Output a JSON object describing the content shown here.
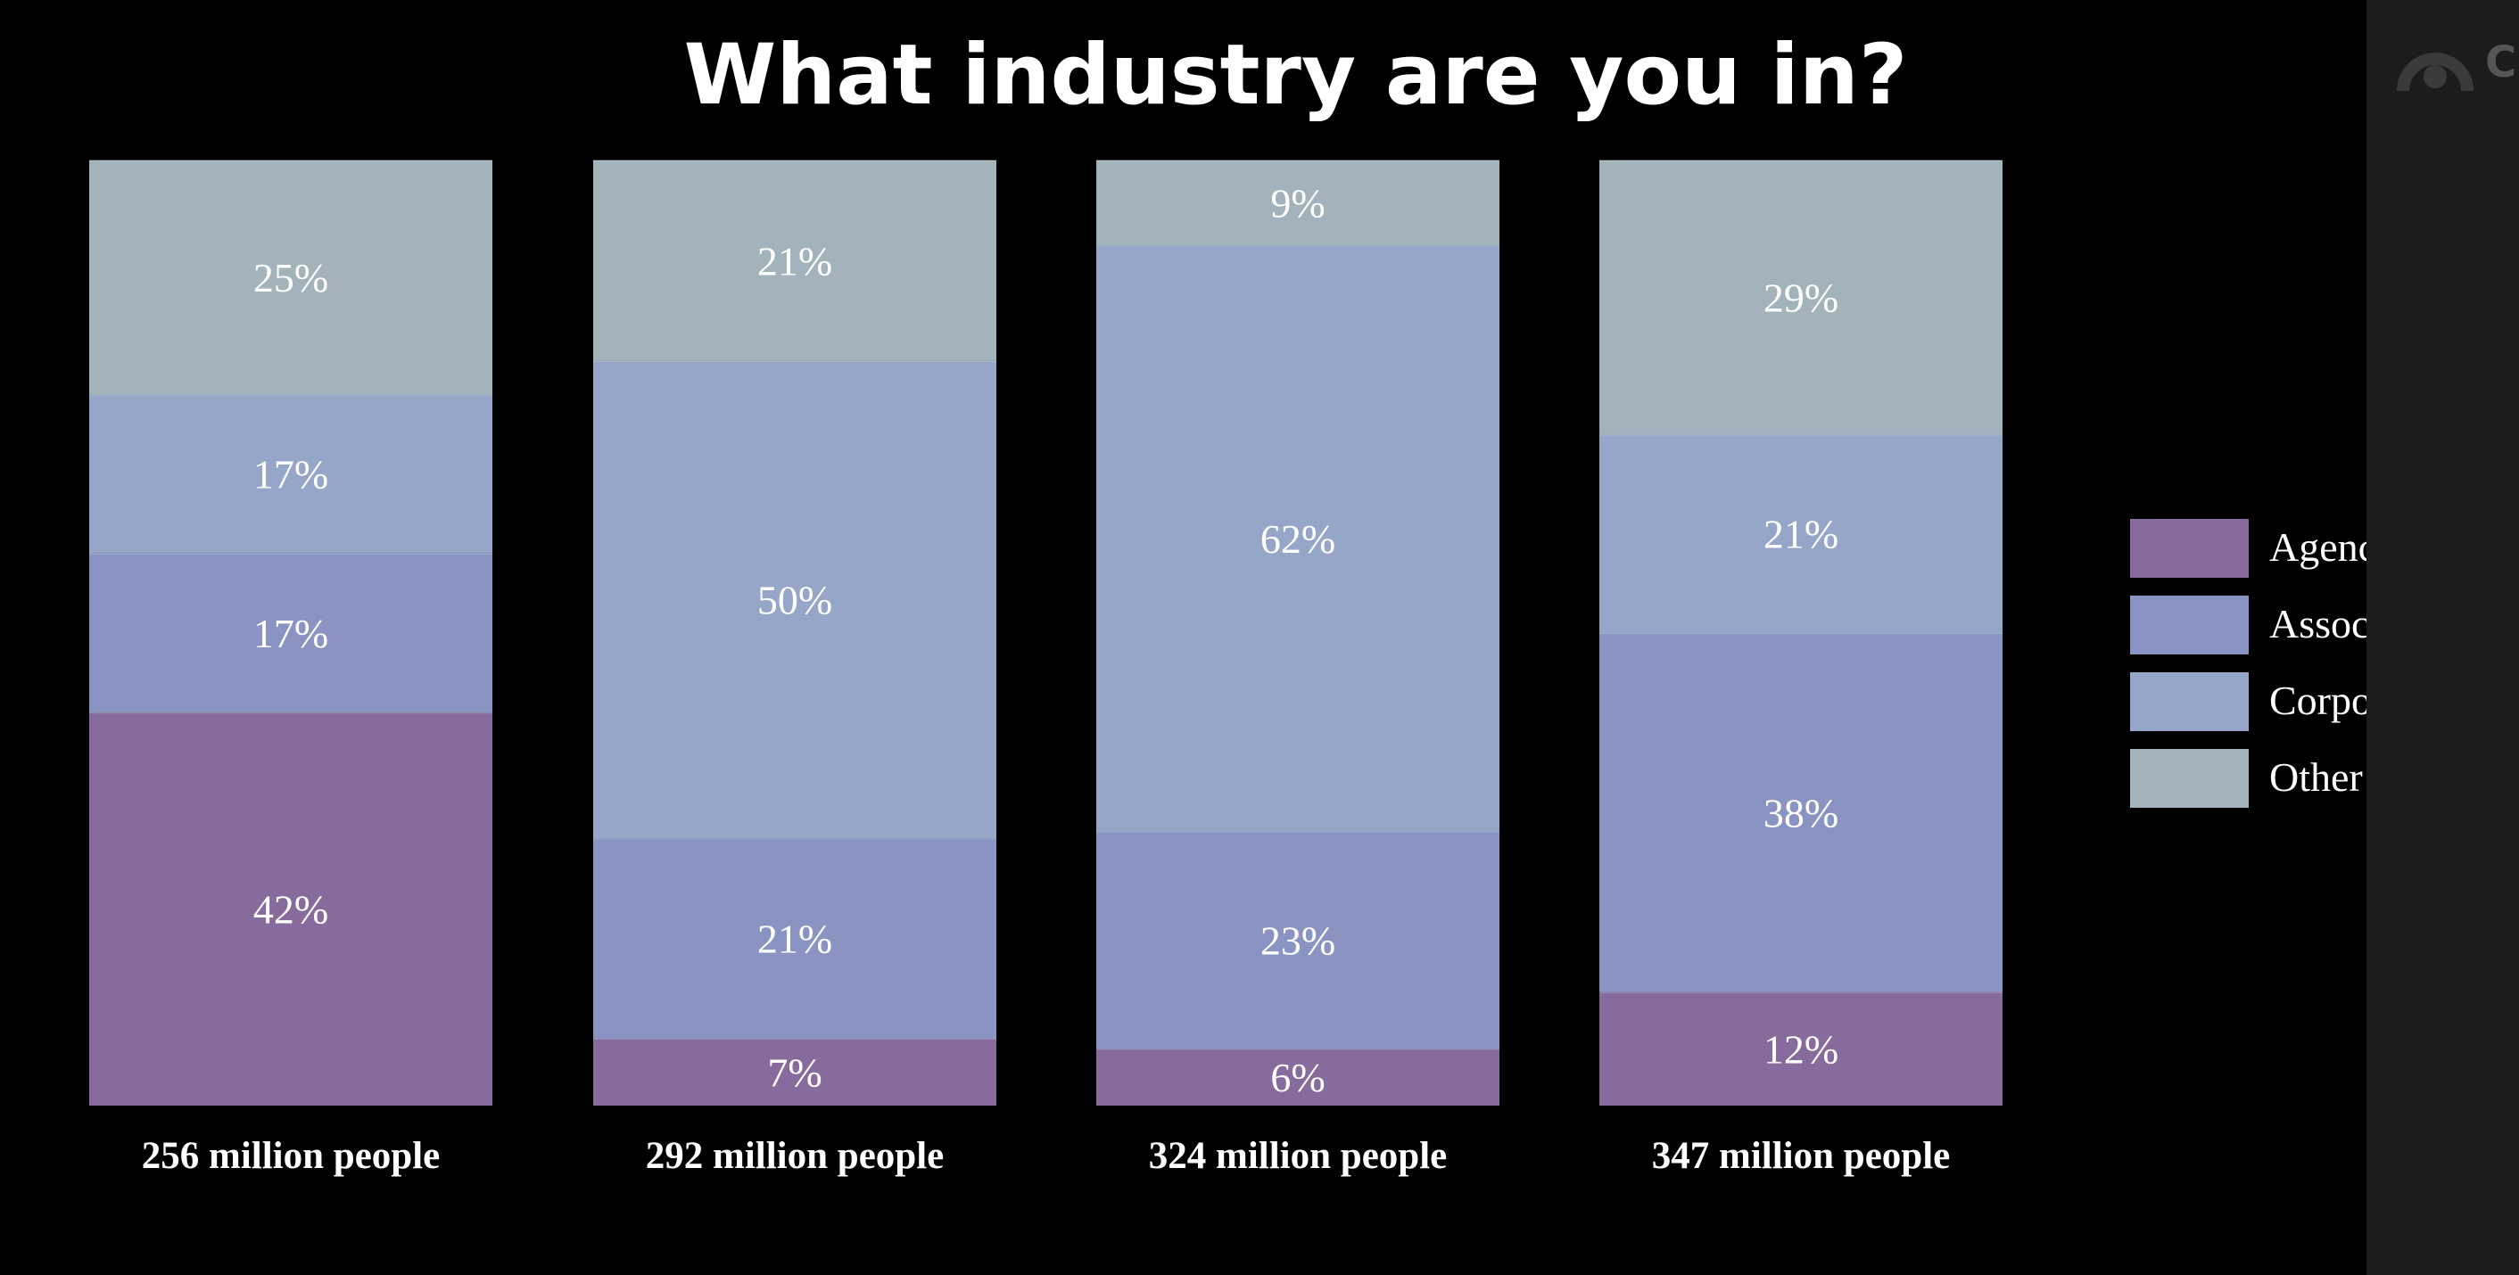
{
  "chart_data": {
    "type": "bar",
    "stacked": true,
    "percent_stacked": true,
    "title": "What industry are you in?",
    "xlabel": "",
    "ylabel": "",
    "ylim": [
      0,
      100
    ],
    "grid": false,
    "legend_position": "right",
    "categories": [
      "256 million people",
      "292 million people",
      "324 million people",
      "347 million people"
    ],
    "series": [
      {
        "name": "Agency",
        "color": "#876b9c",
        "values": [
          42,
          7,
          6,
          12
        ]
      },
      {
        "name": "Association",
        "color": "#8a94c2",
        "values": [
          17,
          21,
          23,
          38
        ]
      },
      {
        "name": "Corporation",
        "color": "#95a6c9",
        "values": [
          17,
          50,
          62,
          21
        ]
      },
      {
        "name": "Other",
        "color": "#a2b3bb",
        "values": [
          25,
          21,
          9,
          29
        ]
      }
    ],
    "data_labels": [
      [
        "42%",
        "7%",
        "6%",
        "12%"
      ],
      [
        "17%",
        "21%",
        "23%",
        "38%"
      ],
      [
        "17%",
        "50%",
        "62%",
        "21%"
      ],
      [
        "25%",
        "21%",
        "9%",
        "29%"
      ]
    ]
  },
  "legend": {
    "items": [
      {
        "label": "Agency",
        "color": "#876b9c"
      },
      {
        "label": "Association",
        "color": "#8a94c2"
      },
      {
        "label": "Corporation",
        "color": "#95a6c9"
      },
      {
        "label": "Other",
        "color": "#a2b3bb"
      }
    ]
  },
  "branding": {
    "icon": "logo-icon",
    "letter": "C"
  },
  "colors": {
    "background": "#000000",
    "side_panel": "#1c1c1c",
    "text": "#ffffff"
  }
}
